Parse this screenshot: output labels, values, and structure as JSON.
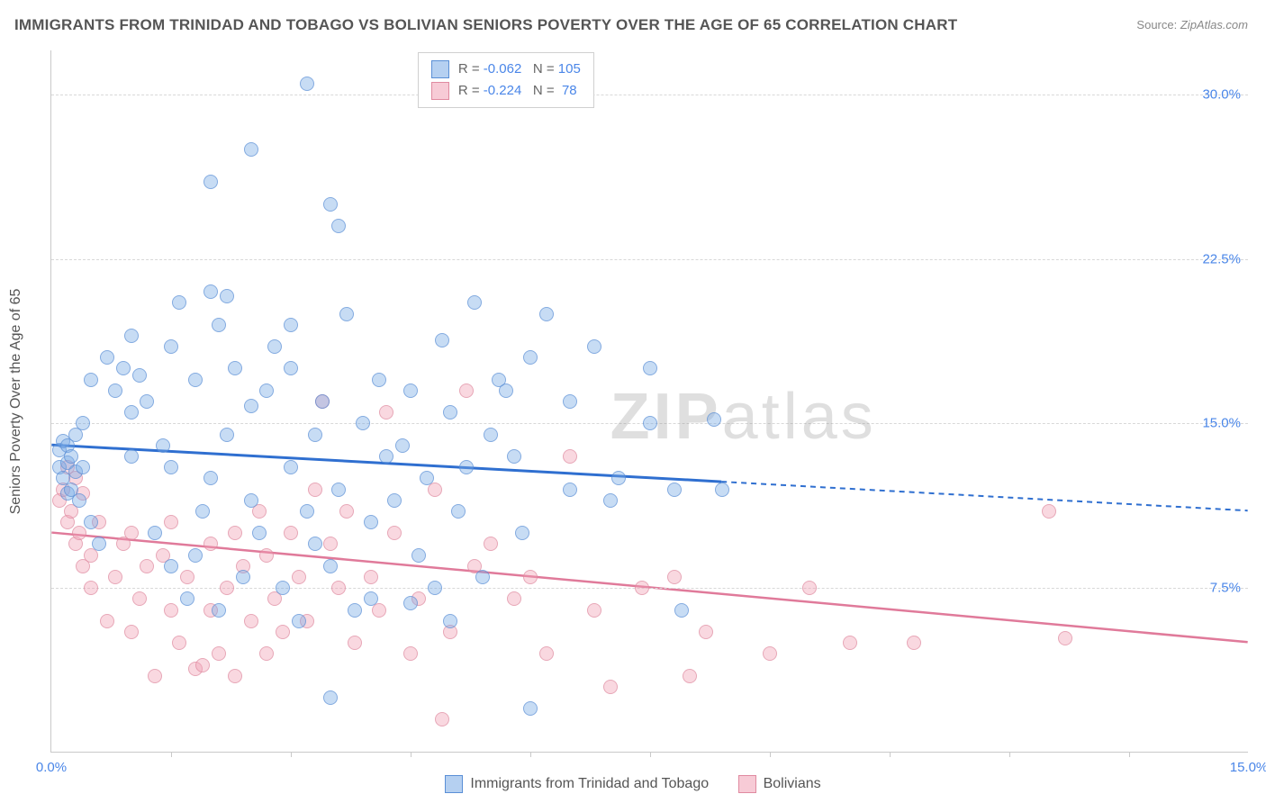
{
  "title": "IMMIGRANTS FROM TRINIDAD AND TOBAGO VS BOLIVIAN SENIORS POVERTY OVER THE AGE OF 65 CORRELATION CHART",
  "source_label": "Source:",
  "source_value": "ZipAtlas.com",
  "y_axis_label": "Seniors Poverty Over the Age of 65",
  "watermark_zip": "ZIP",
  "watermark_atlas": "atlas",
  "legend_top": {
    "r_label": "R =",
    "n_label": "N =",
    "series": [
      {
        "r": "-0.062",
        "n": "105"
      },
      {
        "r": "-0.224",
        "n": " 78"
      }
    ]
  },
  "legend_bottom": {
    "items": [
      {
        "label": "Immigrants from Trinidad and Tobago"
      },
      {
        "label": "Bolivians"
      }
    ]
  },
  "colors": {
    "series1_fill": "rgba(120,170,230,0.55)",
    "series1_stroke": "#5a8fd6",
    "series1_line": "#2f6fd0",
    "series2_fill": "rgba(240,160,180,0.55)",
    "series2_stroke": "#e08aa0",
    "series2_line": "#e07a9a",
    "tick_blue": "#4a86e8",
    "grid": "#d8d8d8"
  },
  "chart": {
    "type": "scatter",
    "xlim": [
      0,
      15
    ],
    "ylim": [
      0,
      32
    ],
    "x_ticks_labeled": [
      {
        "v": 0,
        "label": "0.0%"
      },
      {
        "v": 15,
        "label": "15.0%"
      }
    ],
    "x_minor_ticks": [
      1.5,
      3,
      4.5,
      6,
      7.5,
      9,
      10.5,
      12,
      13.5
    ],
    "y_ticks_labeled": [
      {
        "v": 7.5,
        "label": "7.5%"
      },
      {
        "v": 15,
        "label": "15.0%"
      },
      {
        "v": 22.5,
        "label": "22.5%"
      },
      {
        "v": 30,
        "label": "30.0%"
      }
    ],
    "reg_lines": {
      "series1": {
        "x1": 0,
        "y1": 14.0,
        "x2": 15,
        "y2": 11.0,
        "solid_until_x": 8.4
      },
      "series2": {
        "x1": 0,
        "y1": 10.0,
        "x2": 15,
        "y2": 5.0,
        "solid_until_x": 15
      }
    },
    "series1": [
      [
        0.1,
        13.0
      ],
      [
        0.1,
        13.8
      ],
      [
        0.15,
        12.5
      ],
      [
        0.15,
        14.2
      ],
      [
        0.2,
        11.8
      ],
      [
        0.2,
        13.2
      ],
      [
        0.2,
        14.0
      ],
      [
        0.25,
        12.0
      ],
      [
        0.25,
        13.5
      ],
      [
        0.3,
        12.8
      ],
      [
        0.3,
        14.5
      ],
      [
        0.35,
        11.5
      ],
      [
        0.4,
        13.0
      ],
      [
        0.4,
        15.0
      ],
      [
        0.5,
        10.5
      ],
      [
        0.5,
        17.0
      ],
      [
        0.6,
        9.5
      ],
      [
        0.7,
        18.0
      ],
      [
        0.8,
        16.5
      ],
      [
        0.9,
        17.5
      ],
      [
        1.0,
        19.0
      ],
      [
        1.0,
        15.5
      ],
      [
        1.1,
        17.2
      ],
      [
        1.2,
        16.0
      ],
      [
        1.3,
        10.0
      ],
      [
        1.4,
        14.0
      ],
      [
        1.5,
        8.5
      ],
      [
        1.5,
        18.5
      ],
      [
        1.5,
        13.0
      ],
      [
        1.6,
        20.5
      ],
      [
        1.7,
        7.0
      ],
      [
        1.8,
        17.0
      ],
      [
        1.8,
        9.0
      ],
      [
        1.9,
        11.0
      ],
      [
        2.0,
        26.0
      ],
      [
        2.0,
        12.5
      ],
      [
        2.1,
        19.5
      ],
      [
        2.1,
        6.5
      ],
      [
        2.2,
        14.5
      ],
      [
        2.2,
        20.8
      ],
      [
        2.3,
        17.5
      ],
      [
        2.4,
        8.0
      ],
      [
        2.5,
        27.5
      ],
      [
        2.5,
        11.5
      ],
      [
        2.5,
        15.8
      ],
      [
        2.6,
        10.0
      ],
      [
        2.7,
        16.5
      ],
      [
        2.8,
        18.5
      ],
      [
        2.9,
        7.5
      ],
      [
        3.0,
        13.0
      ],
      [
        3.0,
        17.5
      ],
      [
        3.1,
        6.0
      ],
      [
        3.2,
        30.5
      ],
      [
        3.2,
        11.0
      ],
      [
        3.3,
        9.5
      ],
      [
        3.3,
        14.5
      ],
      [
        3.4,
        16.0
      ],
      [
        3.5,
        25.0
      ],
      [
        3.5,
        2.5
      ],
      [
        3.5,
        8.5
      ],
      [
        3.6,
        24.0
      ],
      [
        3.6,
        12.0
      ],
      [
        3.7,
        20.0
      ],
      [
        3.8,
        6.5
      ],
      [
        3.9,
        15.0
      ],
      [
        4.0,
        10.5
      ],
      [
        4.0,
        7.0
      ],
      [
        4.1,
        17.0
      ],
      [
        4.2,
        13.5
      ],
      [
        4.3,
        11.5
      ],
      [
        4.4,
        14.0
      ],
      [
        4.5,
        6.8
      ],
      [
        4.5,
        16.5
      ],
      [
        4.6,
        9.0
      ],
      [
        4.7,
        12.5
      ],
      [
        4.8,
        7.5
      ],
      [
        5.0,
        15.5
      ],
      [
        5.0,
        6.0
      ],
      [
        5.1,
        11.0
      ],
      [
        5.2,
        13.0
      ],
      [
        5.3,
        20.5
      ],
      [
        5.4,
        8.0
      ],
      [
        5.5,
        14.5
      ],
      [
        5.6,
        17.0
      ],
      [
        5.8,
        13.5
      ],
      [
        5.9,
        10.0
      ],
      [
        6.0,
        2.0
      ],
      [
        6.0,
        18.0
      ],
      [
        6.2,
        20.0
      ],
      [
        6.5,
        16.0
      ],
      [
        6.5,
        12.0
      ],
      [
        6.8,
        18.5
      ],
      [
        7.0,
        11.5
      ],
      [
        7.1,
        12.5
      ],
      [
        7.5,
        17.5
      ],
      [
        7.5,
        15.0
      ],
      [
        7.8,
        12.0
      ],
      [
        7.9,
        6.5
      ],
      [
        8.3,
        15.2
      ],
      [
        8.4,
        12.0
      ],
      [
        5.7,
        16.5
      ],
      [
        4.9,
        18.8
      ],
      [
        3.0,
        19.5
      ],
      [
        2.0,
        21.0
      ],
      [
        1.0,
        13.5
      ]
    ],
    "series2": [
      [
        0.1,
        11.5
      ],
      [
        0.15,
        12.0
      ],
      [
        0.2,
        10.5
      ],
      [
        0.2,
        13.0
      ],
      [
        0.25,
        11.0
      ],
      [
        0.3,
        9.5
      ],
      [
        0.3,
        12.5
      ],
      [
        0.35,
        10.0
      ],
      [
        0.4,
        8.5
      ],
      [
        0.4,
        11.8
      ],
      [
        0.5,
        9.0
      ],
      [
        0.5,
        7.5
      ],
      [
        0.6,
        10.5
      ],
      [
        0.7,
        6.0
      ],
      [
        0.8,
        8.0
      ],
      [
        0.9,
        9.5
      ],
      [
        1.0,
        5.5
      ],
      [
        1.0,
        10.0
      ],
      [
        1.1,
        7.0
      ],
      [
        1.2,
        8.5
      ],
      [
        1.3,
        3.5
      ],
      [
        1.4,
        9.0
      ],
      [
        1.5,
        6.5
      ],
      [
        1.5,
        10.5
      ],
      [
        1.6,
        5.0
      ],
      [
        1.7,
        8.0
      ],
      [
        1.8,
        3.8
      ],
      [
        1.9,
        4.0
      ],
      [
        2.0,
        9.5
      ],
      [
        2.0,
        6.5
      ],
      [
        2.1,
        4.5
      ],
      [
        2.2,
        7.5
      ],
      [
        2.3,
        10.0
      ],
      [
        2.3,
        3.5
      ],
      [
        2.4,
        8.5
      ],
      [
        2.5,
        6.0
      ],
      [
        2.6,
        11.0
      ],
      [
        2.7,
        4.5
      ],
      [
        2.7,
        9.0
      ],
      [
        2.8,
        7.0
      ],
      [
        2.9,
        5.5
      ],
      [
        3.0,
        10.0
      ],
      [
        3.1,
        8.0
      ],
      [
        3.2,
        6.0
      ],
      [
        3.3,
        12.0
      ],
      [
        3.4,
        16.0
      ],
      [
        3.5,
        9.5
      ],
      [
        3.6,
        7.5
      ],
      [
        3.7,
        11.0
      ],
      [
        3.8,
        5.0
      ],
      [
        4.0,
        8.0
      ],
      [
        4.1,
        6.5
      ],
      [
        4.2,
        15.5
      ],
      [
        4.3,
        10.0
      ],
      [
        4.5,
        4.5
      ],
      [
        4.6,
        7.0
      ],
      [
        4.8,
        12.0
      ],
      [
        4.9,
        1.5
      ],
      [
        5.0,
        5.5
      ],
      [
        5.2,
        16.5
      ],
      [
        5.3,
        8.5
      ],
      [
        5.5,
        9.5
      ],
      [
        5.8,
        7.0
      ],
      [
        6.0,
        8.0
      ],
      [
        6.2,
        4.5
      ],
      [
        6.5,
        13.5
      ],
      [
        6.8,
        6.5
      ],
      [
        7.0,
        3.0
      ],
      [
        7.4,
        7.5
      ],
      [
        7.8,
        8.0
      ],
      [
        8.0,
        3.5
      ],
      [
        8.2,
        5.5
      ],
      [
        9.0,
        4.5
      ],
      [
        9.5,
        7.5
      ],
      [
        10.0,
        5.0
      ],
      [
        10.8,
        5.0
      ],
      [
        12.5,
        11.0
      ],
      [
        12.7,
        5.2
      ]
    ]
  }
}
